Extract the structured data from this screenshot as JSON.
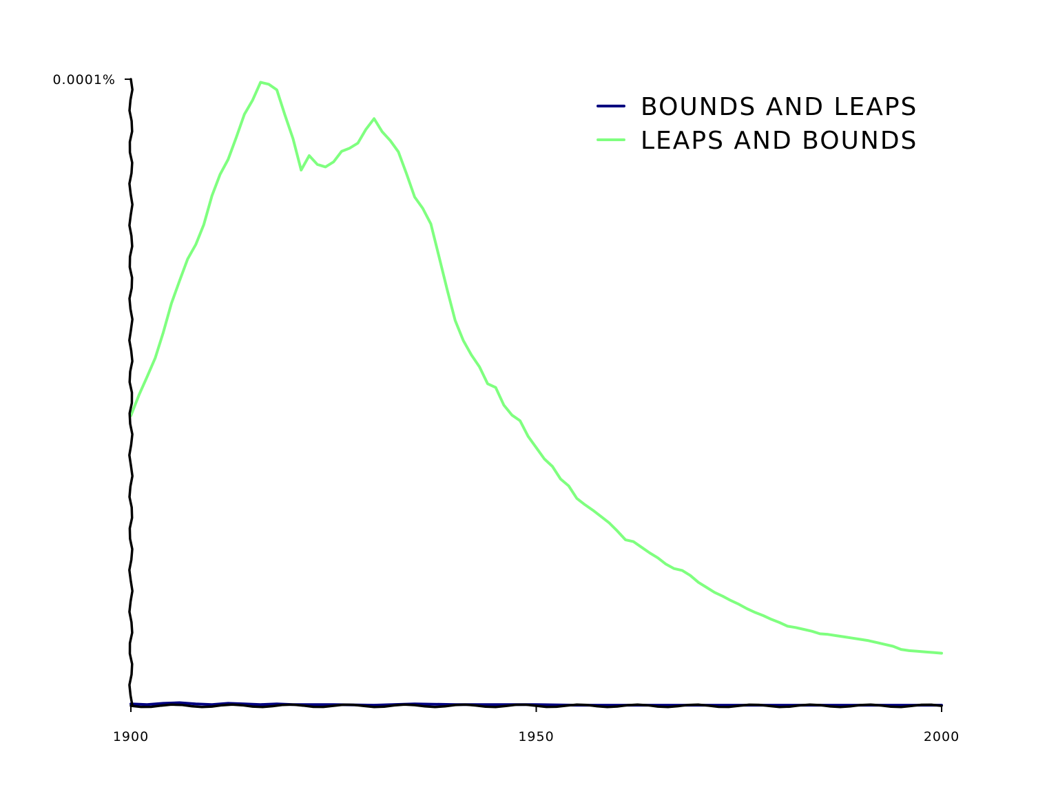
{
  "chart_data": {
    "type": "line",
    "title": "",
    "xlabel": "",
    "ylabel": "",
    "xlim": [
      1900,
      2000
    ],
    "ylim": [
      0,
      0.0001
    ],
    "x_ticks": [
      {
        "value": 1900,
        "label": "1900"
      },
      {
        "value": 1950,
        "label": "1950"
      },
      {
        "value": 2000,
        "label": "2000"
      }
    ],
    "y_ticks": [
      {
        "value": 0.0001,
        "label": "0.0001%"
      }
    ],
    "legend_position": "top-right",
    "grid": false,
    "series": [
      {
        "name": "BOUNDS AND LEAPS",
        "color": "#00007f",
        "x": [
          1900,
          1902,
          1904,
          1906,
          1908,
          1910,
          1912,
          1914,
          1916,
          1918,
          1920,
          1925,
          1930,
          1935,
          1940,
          1945,
          1950,
          1955,
          1960,
          1965,
          1970,
          1975,
          1980,
          1985,
          1990,
          1995,
          2000
        ],
        "y": [
          3e-07,
          2e-07,
          4e-07,
          5e-07,
          3e-07,
          2e-07,
          4e-07,
          3e-07,
          2e-07,
          3e-07,
          2e-07,
          2e-07,
          1e-07,
          3e-07,
          2e-07,
          2e-07,
          2e-07,
          1e-07,
          1e-07,
          1e-07,
          1e-07,
          1e-07,
          1e-07,
          1e-07,
          1e-07,
          1e-07,
          1e-07
        ]
      },
      {
        "name": "LEAPS AND BOUNDS",
        "color": "#7fff7f",
        "x": [
          1900,
          1901,
          1902,
          1903,
          1904,
          1905,
          1906,
          1907,
          1908,
          1909,
          1910,
          1911,
          1912,
          1913,
          1914,
          1915,
          1916,
          1917,
          1918,
          1919,
          1920,
          1921,
          1922,
          1923,
          1924,
          1925,
          1926,
          1927,
          1928,
          1929,
          1930,
          1931,
          1932,
          1933,
          1934,
          1935,
          1936,
          1937,
          1938,
          1939,
          1940,
          1941,
          1942,
          1943,
          1944,
          1945,
          1946,
          1947,
          1948,
          1949,
          1950,
          1951,
          1952,
          1953,
          1954,
          1955,
          1956,
          1957,
          1958,
          1959,
          1960,
          1961,
          1962,
          1963,
          1964,
          1965,
          1966,
          1967,
          1968,
          1969,
          1970,
          1971,
          1972,
          1973,
          1974,
          1975,
          1976,
          1977,
          1978,
          1979,
          1980,
          1981,
          1982,
          1983,
          1984,
          1985,
          1986,
          1987,
          1988,
          1989,
          1990,
          1991,
          1992,
          1993,
          1994,
          1995,
          1996,
          1997,
          1998,
          1999,
          2000
        ],
        "y": [
          4.63e-05,
          4.96e-05,
          5.25e-05,
          5.55e-05,
          5.96e-05,
          6.42e-05,
          6.78e-05,
          7.13e-05,
          7.36e-05,
          7.68e-05,
          8.14e-05,
          8.48e-05,
          8.72e-05,
          9.07e-05,
          9.44e-05,
          9.66e-05,
          9.95e-05,
          9.92e-05,
          9.83e-05,
          9.43e-05,
          9.05e-05,
          8.55e-05,
          8.78e-05,
          8.64e-05,
          8.6e-05,
          8.68e-05,
          8.85e-05,
          8.9e-05,
          8.98e-05,
          9.2e-05,
          9.37e-05,
          9.16e-05,
          9.02e-05,
          8.84e-05,
          8.49e-05,
          8.12e-05,
          7.94e-05,
          7.69e-05,
          7.17e-05,
          6.65e-05,
          6.15e-05,
          5.83e-05,
          5.6e-05,
          5.41e-05,
          5.14e-05,
          5.08e-05,
          4.8e-05,
          4.64e-05,
          4.55e-05,
          4.3e-05,
          4.12e-05,
          3.94e-05,
          3.82e-05,
          3.62e-05,
          3.51e-05,
          3.31e-05,
          3.21e-05,
          3.12e-05,
          3.02e-05,
          2.92e-05,
          2.79e-05,
          2.65e-05,
          2.62e-05,
          2.53e-05,
          2.44e-05,
          2.36e-05,
          2.26e-05,
          2.19e-05,
          2.16e-05,
          2.08e-05,
          1.97e-05,
          1.89e-05,
          1.81e-05,
          1.75e-05,
          1.68e-05,
          1.62e-05,
          1.55e-05,
          1.49e-05,
          1.44e-05,
          1.38e-05,
          1.33e-05,
          1.27e-05,
          1.25e-05,
          1.22e-05,
          1.19e-05,
          1.15e-05,
          1.14e-05,
          1.12e-05,
          1.1e-05,
          1.08e-05,
          1.06e-05,
          1.04e-05,
          1.01e-05,
          9.8e-06,
          9.5e-06,
          9e-06,
          8.8e-06,
          8.7e-06,
          8.6e-06,
          8.5e-06,
          8.4e-06
        ]
      }
    ]
  }
}
